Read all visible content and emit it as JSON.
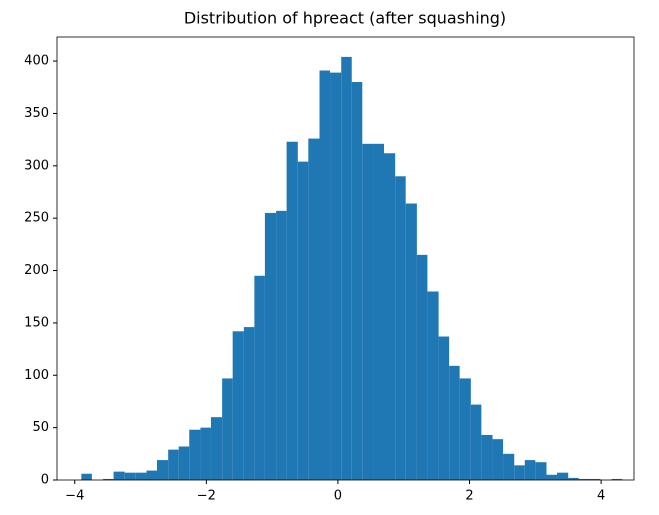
{
  "chart_data": {
    "type": "histogram",
    "title": "Distribution of hpreact (after squashing)",
    "bins": [
      -3.9,
      -3.74,
      -3.57,
      -3.41,
      -3.24,
      -3.08,
      -2.91,
      -2.75,
      -2.58,
      -2.42,
      -2.26,
      -2.09,
      -1.93,
      -1.76,
      -1.6,
      -1.43,
      -1.27,
      -1.11,
      -0.94,
      -0.78,
      -0.61,
      -0.45,
      -0.28,
      -0.12,
      0.05,
      0.21,
      0.37,
      0.54,
      0.7,
      0.87,
      1.03,
      1.2,
      1.36,
      1.53,
      1.69,
      1.85,
      2.02,
      2.18,
      2.35,
      2.51,
      2.68,
      2.84,
      3.0,
      3.17,
      3.33,
      3.5,
      3.66,
      3.83,
      3.99,
      4.16,
      4.32
    ],
    "values": [
      6,
      0,
      1,
      8,
      7,
      7,
      9,
      19,
      29,
      32,
      48,
      50,
      60,
      97,
      142,
      146,
      195,
      255,
      257,
      323,
      304,
      326,
      391,
      389,
      404,
      380,
      321,
      321,
      312,
      290,
      264,
      215,
      180,
      137,
      109,
      97,
      72,
      43,
      39,
      25,
      14,
      19,
      17,
      5,
      7,
      2,
      1,
      1,
      0,
      1
    ],
    "color": "#1f77b4",
    "xlim": [
      -4.27,
      4.5
    ],
    "xticks": [
      {
        "value": -4,
        "label": "−4"
      },
      {
        "value": -2,
        "label": "−2"
      },
      0,
      2,
      4
    ],
    "ylim": [
      0,
      423
    ],
    "yticks": [
      0,
      50,
      100,
      150,
      200,
      250,
      300,
      350,
      400
    ]
  }
}
